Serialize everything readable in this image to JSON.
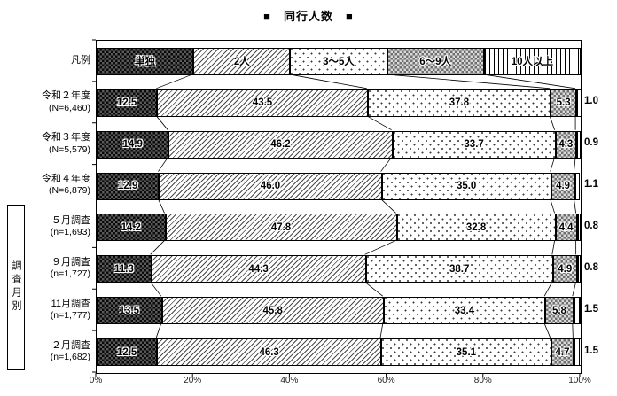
{
  "title_display": "■　同行人数　■",
  "chart_data": {
    "type": "stacked-bar-horizontal",
    "title": "同行人数",
    "unit": "%",
    "legend": {
      "row_label": "凡例",
      "items": [
        {
          "name": "単独",
          "pattern": "dark-checker"
        },
        {
          "name": "2人",
          "pattern": "diagonal-hatch"
        },
        {
          "name": "3～5人",
          "pattern": "dots"
        },
        {
          "name": "6～9人",
          "pattern": "gray-checker"
        },
        {
          "name": "10人以上",
          "pattern": "vertical-stripes"
        }
      ]
    },
    "rows": [
      {
        "label": "令和２年度",
        "sublabel": "(N=6,460)",
        "values": [
          "12.5",
          "43.5",
          "37.8",
          "5.3",
          "1.0"
        ]
      },
      {
        "label": "令和３年度",
        "sublabel": "(N=5,579)",
        "values": [
          "14.9",
          "46.2",
          "33.7",
          "4.3",
          "0.9"
        ]
      },
      {
        "label": "令和４年度",
        "sublabel": "(N=6,879)",
        "values": [
          "12.9",
          "46.0",
          "35.0",
          "4.9",
          "1.1"
        ]
      },
      {
        "label": "５月調査",
        "sublabel": "(n=1,693)",
        "values": [
          "14.2",
          "47.8",
          "32.8",
          "4.4",
          "0.8"
        ]
      },
      {
        "label": "９月調査",
        "sublabel": "(n=1,727)",
        "values": [
          "11.3",
          "44.3",
          "38.7",
          "4.9",
          "0.8"
        ]
      },
      {
        "label": "11月調査",
        "sublabel": "(n=1,777)",
        "values": [
          "13.5",
          "45.8",
          "33.4",
          "5.8",
          "1.5"
        ]
      },
      {
        "label": "２月調査",
        "sublabel": "(n=1,682)",
        "values": [
          "12.5",
          "46.3",
          "35.1",
          "4.7",
          "1.5"
        ]
      }
    ],
    "group_label": "調査月別",
    "group_row_indices": [
      3,
      6
    ],
    "x_axis": {
      "tick_labels": [
        "0%",
        "20%",
        "40%",
        "60%",
        "80%",
        "100%"
      ],
      "min": 0,
      "max": 100
    },
    "layout": {
      "legend_in_first_slot": true,
      "grid": false,
      "connector_lines": true
    },
    "colors": {
      "ink": "#000000",
      "background": "#ffffff"
    }
  }
}
